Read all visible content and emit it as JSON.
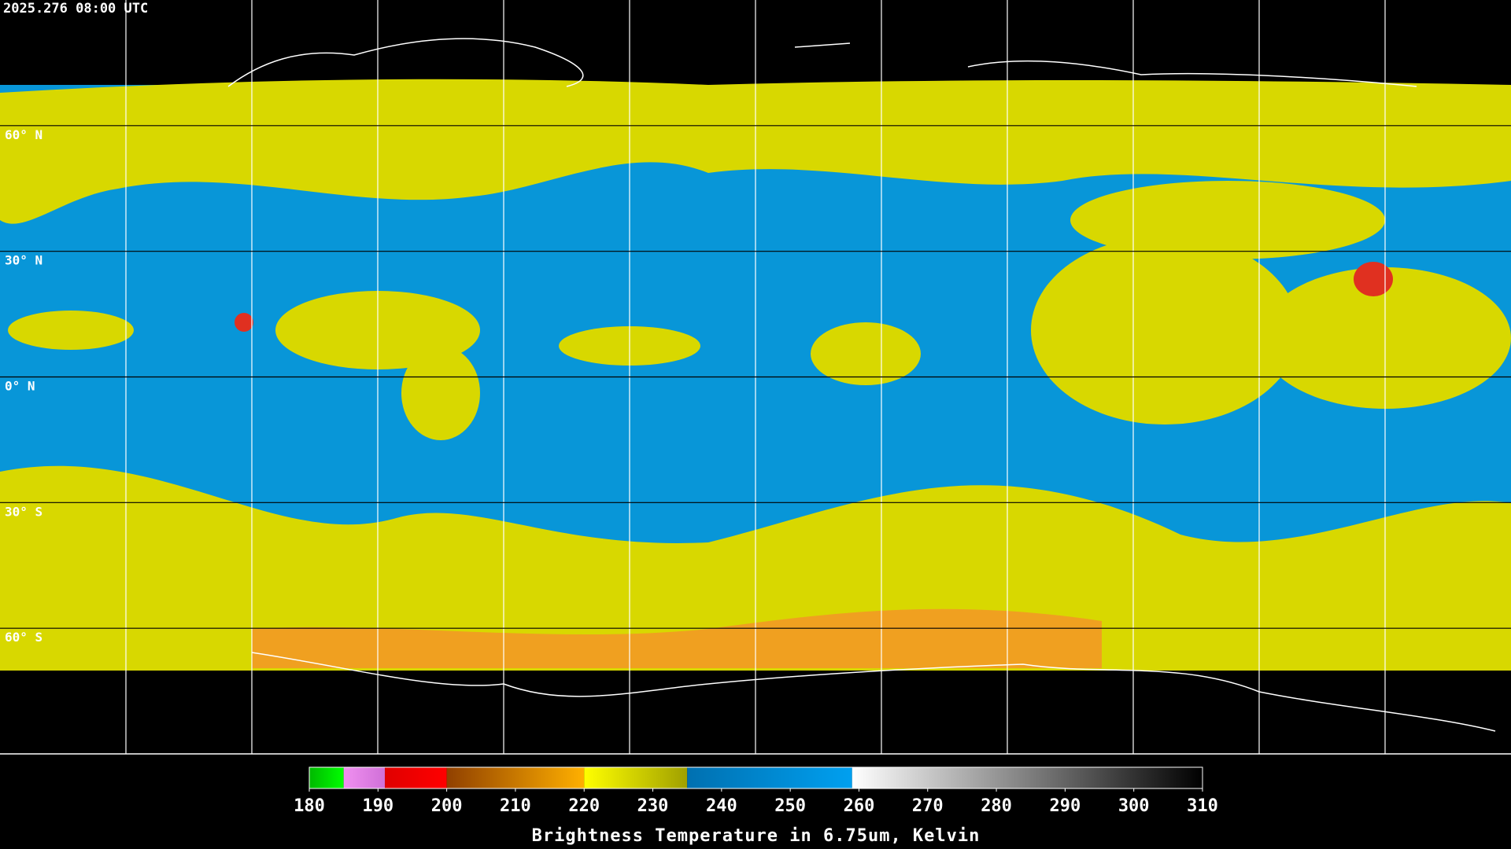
{
  "header": {
    "timestamp": "2025.276 08:00 UTC"
  },
  "map": {
    "ylim": [
      90,
      -90
    ],
    "latitudes": [
      {
        "value": 60,
        "label": "60° N"
      },
      {
        "value": 30,
        "label": "30° N"
      },
      {
        "value": 0,
        "label": "0° N"
      },
      {
        "value": -30,
        "label": "30° S"
      },
      {
        "value": -60,
        "label": "60° S"
      }
    ]
  },
  "colorbar": {
    "type": "colorbar",
    "range": [
      180,
      310
    ],
    "ticks": [
      180,
      190,
      200,
      210,
      220,
      230,
      240,
      250,
      260,
      270,
      280,
      290,
      300,
      310
    ],
    "label": "Brightness Temperature in 6.75um, Kelvin",
    "segments": [
      {
        "from": 180,
        "to": 185,
        "colors": [
          "#00b800",
          "#00ff00"
        ]
      },
      {
        "from": 185,
        "to": 191,
        "colors": [
          "#f090f0",
          "#d070d8"
        ]
      },
      {
        "from": 191,
        "to": 200,
        "colors": [
          "#e00000",
          "#ff0000"
        ]
      },
      {
        "from": 200,
        "to": 220,
        "colors": [
          "#904000",
          "#ffb000"
        ]
      },
      {
        "from": 220,
        "to": 235,
        "colors": [
          "#ffff00",
          "#a0a000"
        ]
      },
      {
        "from": 235,
        "to": 259,
        "colors": [
          "#0070b0",
          "#00a0f0"
        ]
      },
      {
        "from": 259,
        "to": 310,
        "colors": [
          "#ffffff",
          "#000000"
        ]
      }
    ]
  }
}
